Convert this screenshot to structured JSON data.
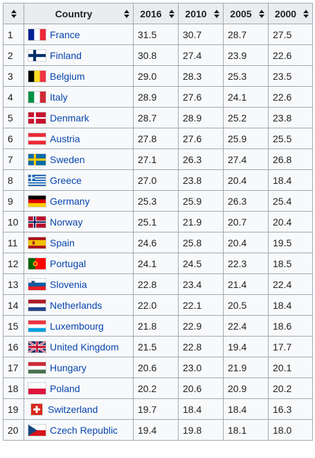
{
  "table": {
    "headers": {
      "rank": "",
      "country": "Country",
      "y2016": "2016",
      "y2010": "2010",
      "y2005": "2005",
      "y2000": "2000"
    },
    "rows": [
      {
        "rank": "1",
        "country": "France",
        "flag": "flag-france-icon",
        "y2016": "31.5",
        "y2010": "30.7",
        "y2005": "28.7",
        "y2000": "27.5"
      },
      {
        "rank": "2",
        "country": "Finland",
        "flag": "flag-finland-icon",
        "y2016": "30.8",
        "y2010": "27.4",
        "y2005": "23.9",
        "y2000": "22.6"
      },
      {
        "rank": "3",
        "country": "Belgium",
        "flag": "flag-belgium-icon",
        "y2016": "29.0",
        "y2010": "28.3",
        "y2005": "25.3",
        "y2000": "23.5"
      },
      {
        "rank": "4",
        "country": "Italy",
        "flag": "flag-italy-icon",
        "y2016": "28.9",
        "y2010": "27.6",
        "y2005": "24.1",
        "y2000": "22.6"
      },
      {
        "rank": "5",
        "country": "Denmark",
        "flag": "flag-denmark-icon",
        "y2016": "28.7",
        "y2010": "28.9",
        "y2005": "25.2",
        "y2000": "23.8"
      },
      {
        "rank": "6",
        "country": "Austria",
        "flag": "flag-austria-icon",
        "y2016": "27.8",
        "y2010": "27.6",
        "y2005": "25.9",
        "y2000": "25.5"
      },
      {
        "rank": "7",
        "country": "Sweden",
        "flag": "flag-sweden-icon",
        "y2016": "27.1",
        "y2010": "26.3",
        "y2005": "27.4",
        "y2000": "26.8"
      },
      {
        "rank": "8",
        "country": "Greece",
        "flag": "flag-greece-icon",
        "y2016": "27.0",
        "y2010": "23.8",
        "y2005": "20.4",
        "y2000": "18.4"
      },
      {
        "rank": "9",
        "country": "Germany",
        "flag": "flag-germany-icon",
        "y2016": "25.3",
        "y2010": "25.9",
        "y2005": "26.3",
        "y2000": "25.4"
      },
      {
        "rank": "10",
        "country": "Norway",
        "flag": "flag-norway-icon",
        "y2016": "25.1",
        "y2010": "21.9",
        "y2005": "20.7",
        "y2000": "20.4"
      },
      {
        "rank": "11",
        "country": "Spain",
        "flag": "flag-spain-icon",
        "y2016": "24.6",
        "y2010": "25.8",
        "y2005": "20.4",
        "y2000": "19.5"
      },
      {
        "rank": "12",
        "country": "Portugal",
        "flag": "flag-portugal-icon",
        "y2016": "24.1",
        "y2010": "24.5",
        "y2005": "22.3",
        "y2000": "18.5"
      },
      {
        "rank": "13",
        "country": "Slovenia",
        "flag": "flag-slovenia-icon",
        "y2016": "22.8",
        "y2010": "23.4",
        "y2005": "21.4",
        "y2000": "22.4"
      },
      {
        "rank": "14",
        "country": "Netherlands",
        "flag": "flag-netherlands-icon",
        "y2016": "22.0",
        "y2010": "22.1",
        "y2005": "20.5",
        "y2000": "18.4"
      },
      {
        "rank": "15",
        "country": "Luxembourg",
        "flag": "flag-luxembourg-icon",
        "y2016": "21.8",
        "y2010": "22.9",
        "y2005": "22.4",
        "y2000": "18.6"
      },
      {
        "rank": "16",
        "country": "United Kingdom",
        "flag": "flag-united-kingdom-icon",
        "y2016": "21.5",
        "y2010": "22.8",
        "y2005": "19.4",
        "y2000": "17.7"
      },
      {
        "rank": "17",
        "country": "Hungary",
        "flag": "flag-hungary-icon",
        "y2016": "20.6",
        "y2010": "23.0",
        "y2005": "21.9",
        "y2000": "20.1"
      },
      {
        "rank": "18",
        "country": "Poland",
        "flag": "flag-poland-icon",
        "y2016": "20.2",
        "y2010": "20.6",
        "y2005": "20.9",
        "y2000": "20.2"
      },
      {
        "rank": "19",
        "country": "Switzerland",
        "flag": "flag-switzerland-icon",
        "y2016": "19.7",
        "y2010": "18.4",
        "y2005": "18.4",
        "y2000": "16.3"
      },
      {
        "rank": "20",
        "country": "Czech Republic",
        "flag": "flag-czech-republic-icon",
        "y2016": "19.4",
        "y2010": "19.8",
        "y2005": "18.1",
        "y2000": "18.0"
      }
    ]
  },
  "colors": {
    "link": "#0645ad",
    "header_bg": "#eaecf0",
    "cell_bg": "#f8f9fa",
    "border": "#a2a9b1"
  }
}
